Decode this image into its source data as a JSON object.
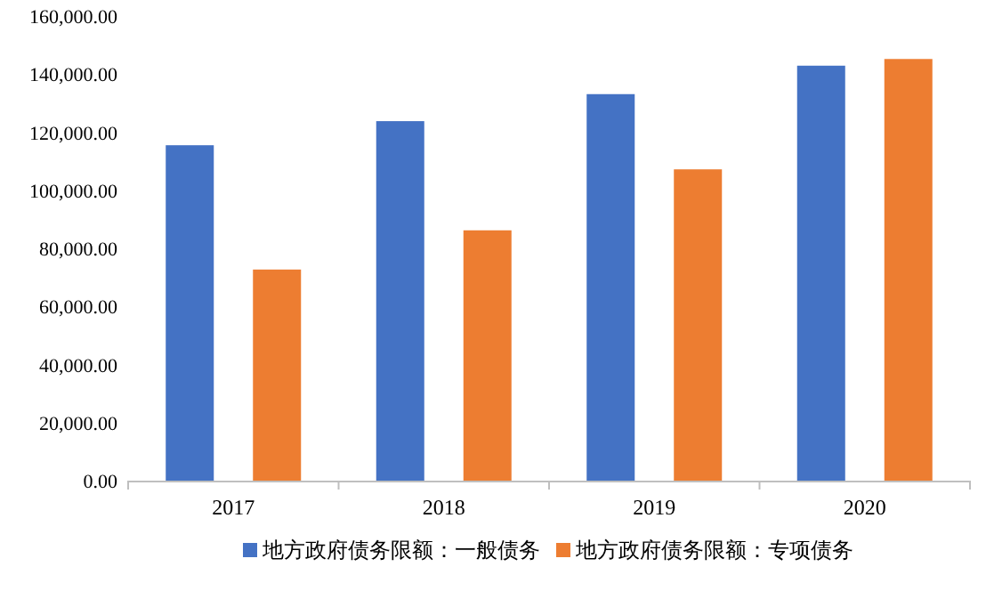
{
  "chart_data": {
    "type": "bar",
    "categories": [
      "2017",
      "2018",
      "2019",
      "2020"
    ],
    "series": [
      {
        "name": "地方政府债务限额：一般债务",
        "color": "#4472c4",
        "values": [
          115500,
          123800,
          133100,
          142900
        ]
      },
      {
        "name": "地方政府债务限额：专项债务",
        "color": "#ed7d31",
        "values": [
          72700,
          86200,
          107200,
          145200
        ]
      }
    ],
    "ylim": [
      0,
      160000
    ],
    "yticks": [
      {
        "value": 0,
        "label": "0.00"
      },
      {
        "value": 20000,
        "label": "20,000.00"
      },
      {
        "value": 40000,
        "label": "40,000.00"
      },
      {
        "value": 60000,
        "label": "60,000.00"
      },
      {
        "value": 80000,
        "label": "80,000.00"
      },
      {
        "value": 100000,
        "label": "100,000.00"
      },
      {
        "value": 120000,
        "label": "120,000.00"
      },
      {
        "value": 140000,
        "label": "140,000.00"
      },
      {
        "value": 160000,
        "label": "160,000.00"
      }
    ],
    "grid": false,
    "legend": "bottom"
  }
}
